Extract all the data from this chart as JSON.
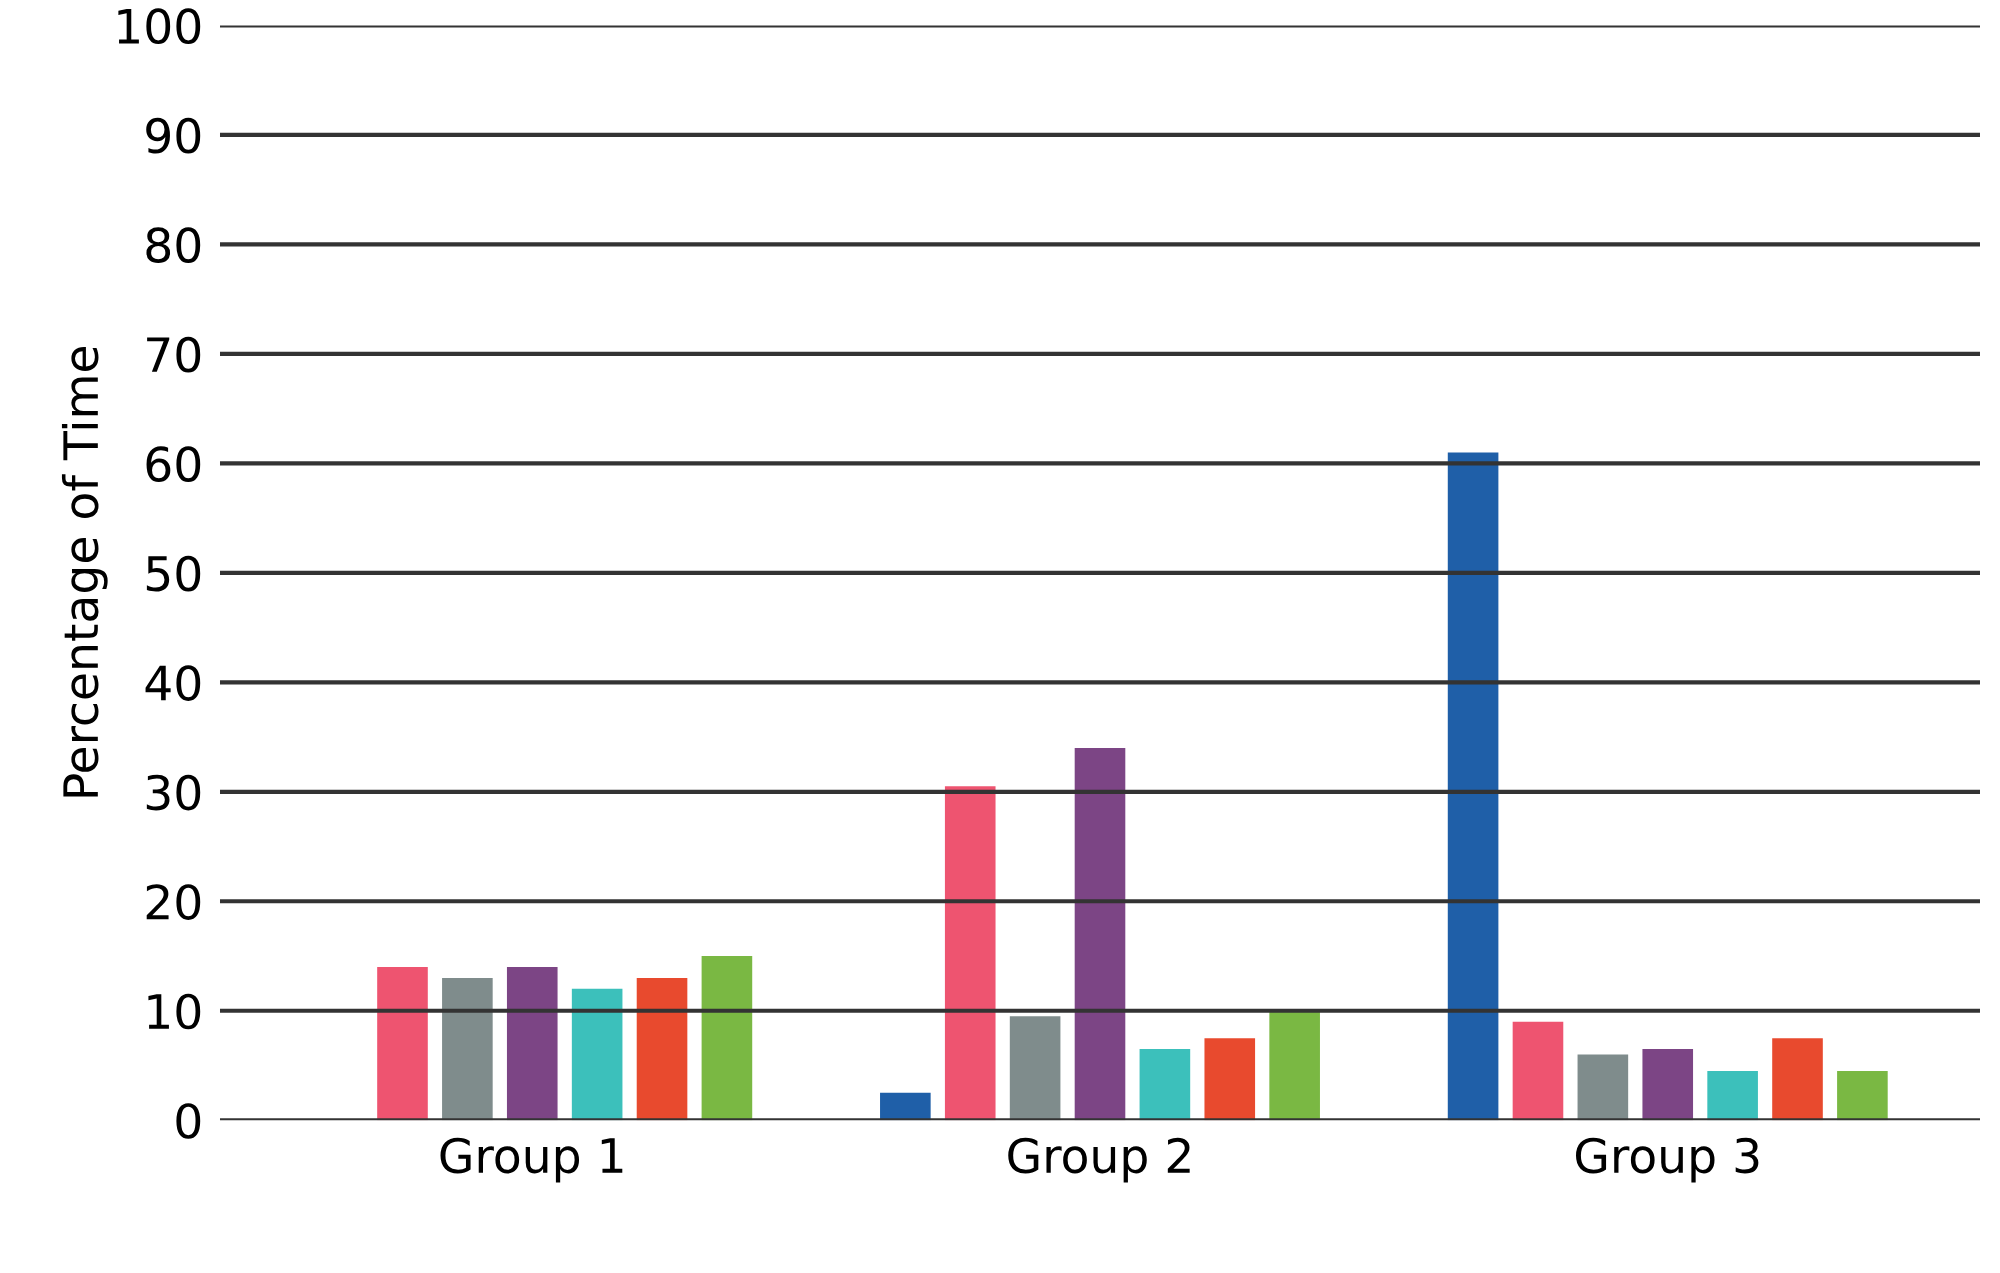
{
  "chart_data": {
    "type": "bar",
    "ylabel": "Percentage of Time",
    "categories": [
      "Group 1",
      "Group 2",
      "Group 3"
    ],
    "series": [
      {
        "color": "#1f5fa8",
        "values": [
          null,
          2.5,
          61
        ]
      },
      {
        "color": "#ee5470",
        "values": [
          14,
          30.5,
          9
        ]
      },
      {
        "color": "#7f8c8c",
        "values": [
          13,
          9.5,
          6
        ]
      },
      {
        "color": "#7c4585",
        "values": [
          14,
          34,
          6.5
        ]
      },
      {
        "color": "#3cc0bb",
        "values": [
          12,
          6.5,
          4.5
        ]
      },
      {
        "color": "#e84a2e",
        "values": [
          13,
          7.5,
          7.5
        ]
      },
      {
        "color": "#7ab843",
        "values": [
          15,
          10,
          4.5
        ]
      }
    ],
    "ylim": [
      0,
      100
    ],
    "yticks": [
      0,
      10,
      20,
      30,
      40,
      50,
      60,
      70,
      80,
      90,
      100
    ],
    "grid": "y"
  }
}
